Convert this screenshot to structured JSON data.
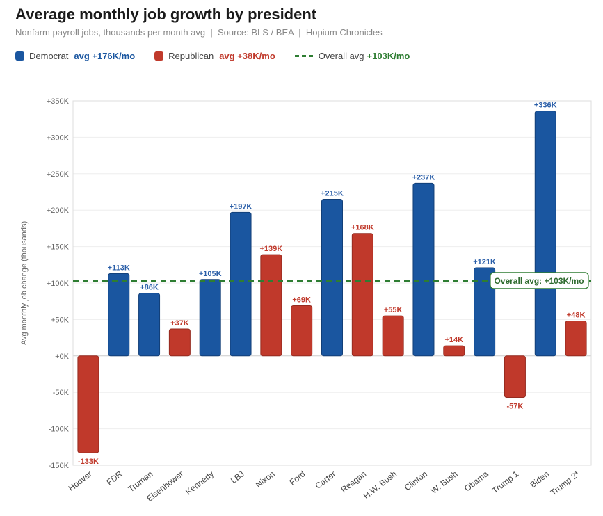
{
  "title": "Average monthly job growth by president",
  "subtitle": "Nonfarm payroll jobs, thousands per month avg  |  Source: BLS / BEA  |  Hopium Chronicles",
  "legend": {
    "dem": {
      "label": "Democrat",
      "avg": "avg +176K/mo",
      "color": "#1a56a0"
    },
    "rep": {
      "label": "Republican",
      "avg": "avg +38K/mo",
      "color": "#c0392b"
    },
    "overall": {
      "label": "Overall avg",
      "avg": "+103K/mo",
      "color": "#2e7d32"
    }
  },
  "chart_data": {
    "type": "bar",
    "title": "Average monthly job growth by president",
    "ylabel": "Avg monthly job change (thousands)",
    "ylim": [
      -150,
      350
    ],
    "yticks": [
      -150,
      -100,
      -50,
      0,
      50,
      100,
      150,
      200,
      250,
      300,
      350
    ],
    "categories": [
      "Hoover",
      "FDR",
      "Truman",
      "Eisenhower",
      "Kennedy",
      "LBJ",
      "Nixon",
      "Ford",
      "Carter",
      "Reagan",
      "H.W. Bush",
      "Clinton",
      "W. Bush",
      "Obama",
      "Trump 1",
      "Biden",
      "Trump 2*"
    ],
    "values": [
      -133,
      113,
      86,
      37,
      105,
      197,
      139,
      69,
      215,
      168,
      55,
      237,
      14,
      121,
      -57,
      336,
      48
    ],
    "party": [
      "R",
      "D",
      "D",
      "R",
      "D",
      "D",
      "R",
      "R",
      "D",
      "R",
      "R",
      "D",
      "R",
      "D",
      "R",
      "D",
      "R"
    ],
    "overall_avg": 103,
    "annotation": "Overall avg: +103K/mo",
    "grid": true
  }
}
